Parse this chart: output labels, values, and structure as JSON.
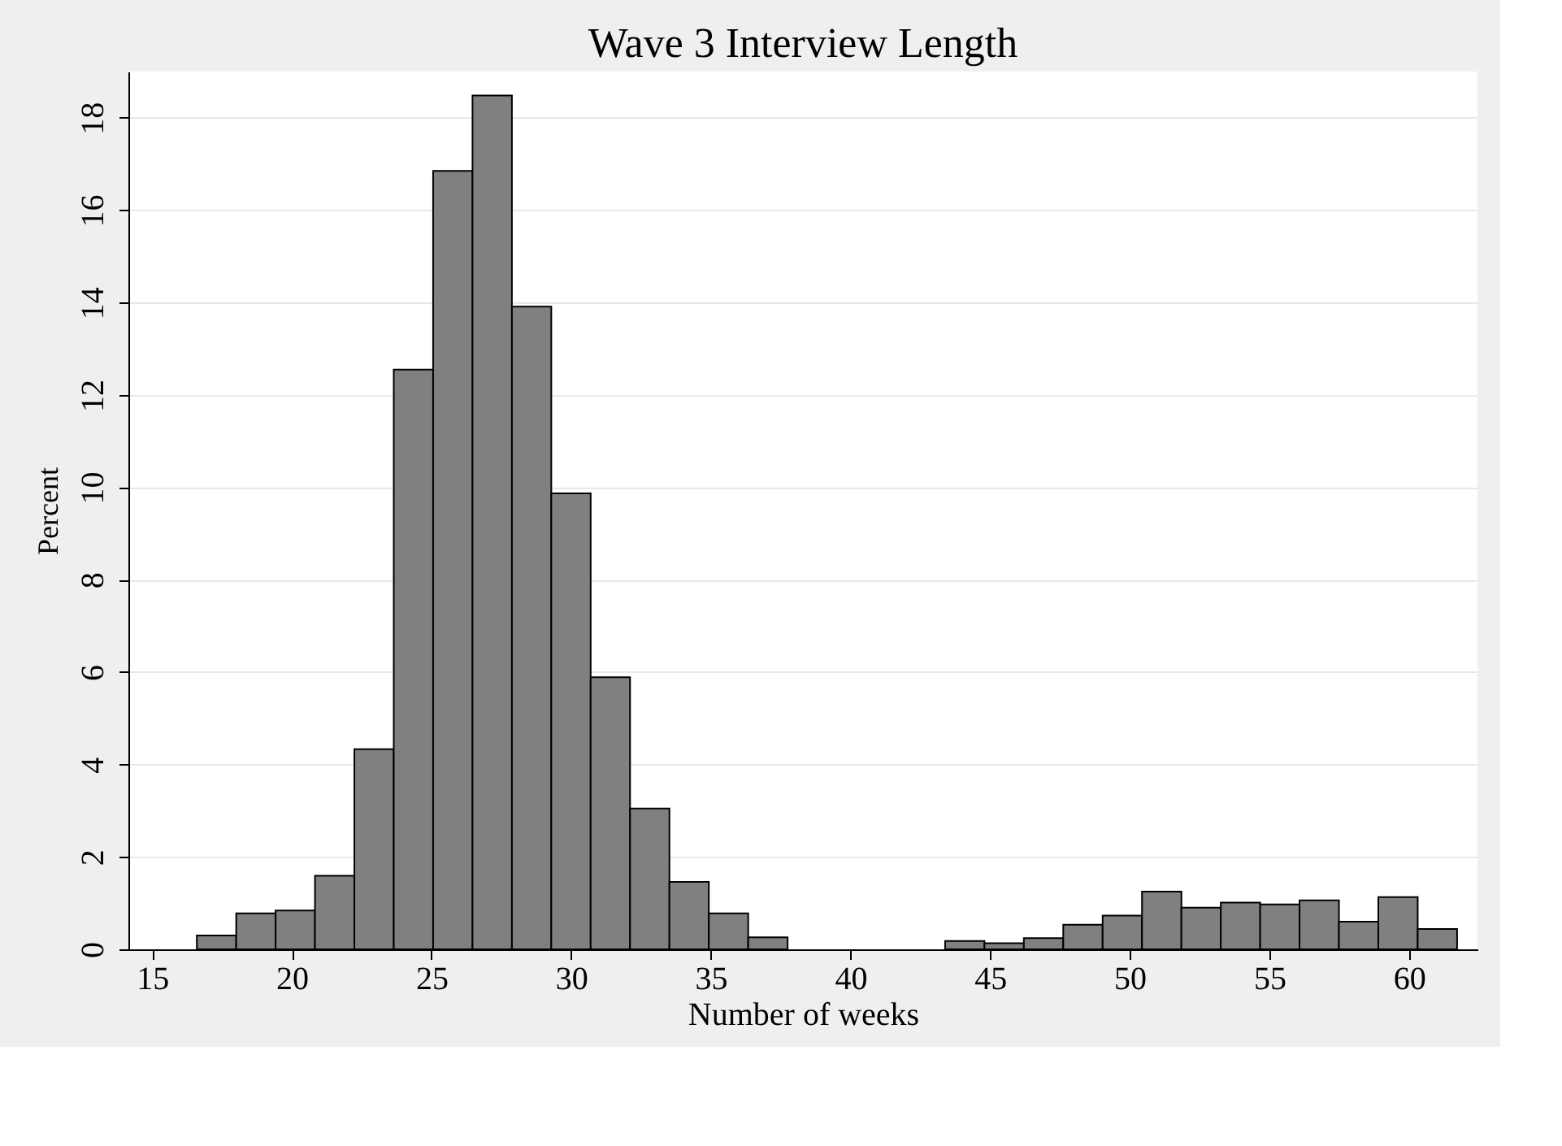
{
  "chart_data": {
    "type": "histogram",
    "title": "Wave 3 Interview Length",
    "xlabel": "Number of weeks",
    "ylabel": "Percent",
    "bins": [
      16.6,
      18.01,
      19.42,
      20.83,
      22.24,
      23.65,
      25.06,
      26.47,
      27.88,
      29.29,
      30.7,
      32.11,
      33.52,
      34.93,
      36.34,
      37.75,
      39.16,
      40.57,
      41.98,
      43.39,
      44.8,
      46.21,
      47.62,
      49.03,
      50.44,
      51.85,
      53.26,
      54.67,
      56.08,
      57.49,
      58.9,
      60.31,
      61.72
    ],
    "values": [
      0.3,
      0.78,
      0.84,
      1.59,
      4.33,
      12.55,
      16.85,
      18.48,
      13.91,
      9.87,
      5.89,
      3.05,
      1.46,
      0.78,
      0.26,
      null,
      null,
      null,
      null,
      0.18,
      0.13,
      0.24,
      0.53,
      0.73,
      1.25,
      0.9,
      1.01,
      0.97,
      1.06,
      0.6,
      1.13,
      0.44
    ],
    "color": "#808080",
    "xlim": [
      14.15,
      62.45
    ],
    "ylim": [
      0,
      19
    ],
    "xticks": [
      15,
      20,
      25,
      30,
      35,
      40,
      45,
      50,
      55,
      60
    ],
    "yticks": [
      0,
      2,
      4,
      6,
      8,
      10,
      12,
      14,
      16,
      18
    ],
    "grid": "y"
  }
}
